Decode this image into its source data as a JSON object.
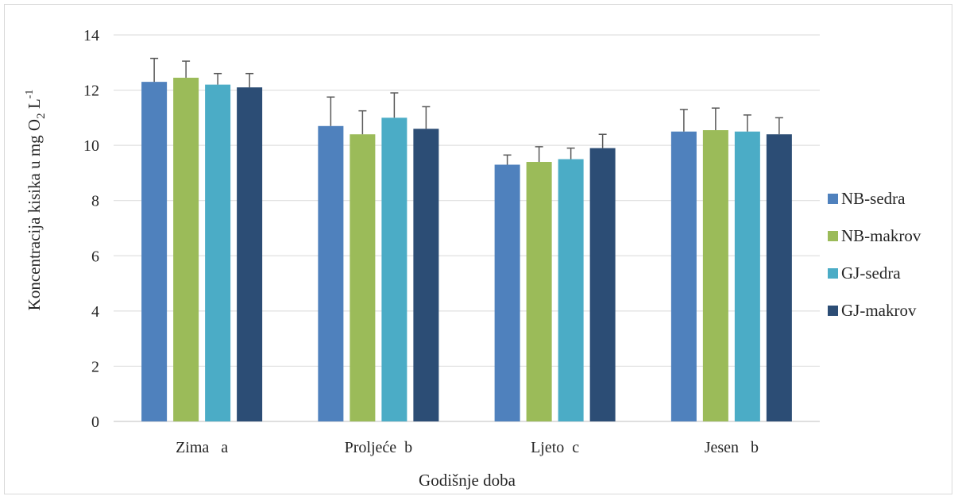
{
  "chart_data": {
    "type": "bar",
    "xlabel": "Godišnje doba",
    "ylabel_main": "Koncentracija kisika u mg O",
    "ylabel_sub": "2",
    "ylabel_unit": " L",
    "ylabel_sup": "-1",
    "ylim": [
      0,
      14
    ],
    "yticks": [
      0,
      2,
      4,
      6,
      8,
      10,
      12,
      14
    ],
    "grid": true,
    "legend_position": "right",
    "categories": [
      "Zima   a",
      "Proljeće  b",
      "Ljeto  c",
      "Jesen   b"
    ],
    "series": [
      {
        "name": "NB-sedra",
        "color": "#4f81bd",
        "values": [
          12.3,
          10.7,
          9.3,
          10.5
        ],
        "errors": [
          0.85,
          1.05,
          0.35,
          0.8
        ]
      },
      {
        "name": "NB-makrov",
        "color": "#9bbb59",
        "values": [
          12.45,
          10.4,
          9.4,
          10.55
        ],
        "errors": [
          0.6,
          0.85,
          0.55,
          0.8
        ]
      },
      {
        "name": "GJ-sedra",
        "color": "#4bacc6",
        "values": [
          12.2,
          11.0,
          9.5,
          10.5
        ],
        "errors": [
          0.4,
          0.9,
          0.4,
          0.6
        ]
      },
      {
        "name": "GJ-makrov",
        "color": "#2c4d75",
        "values": [
          12.1,
          10.6,
          9.9,
          10.4
        ],
        "errors": [
          0.5,
          0.8,
          0.5,
          0.6
        ]
      }
    ],
    "error_bar_color": "#595959"
  }
}
